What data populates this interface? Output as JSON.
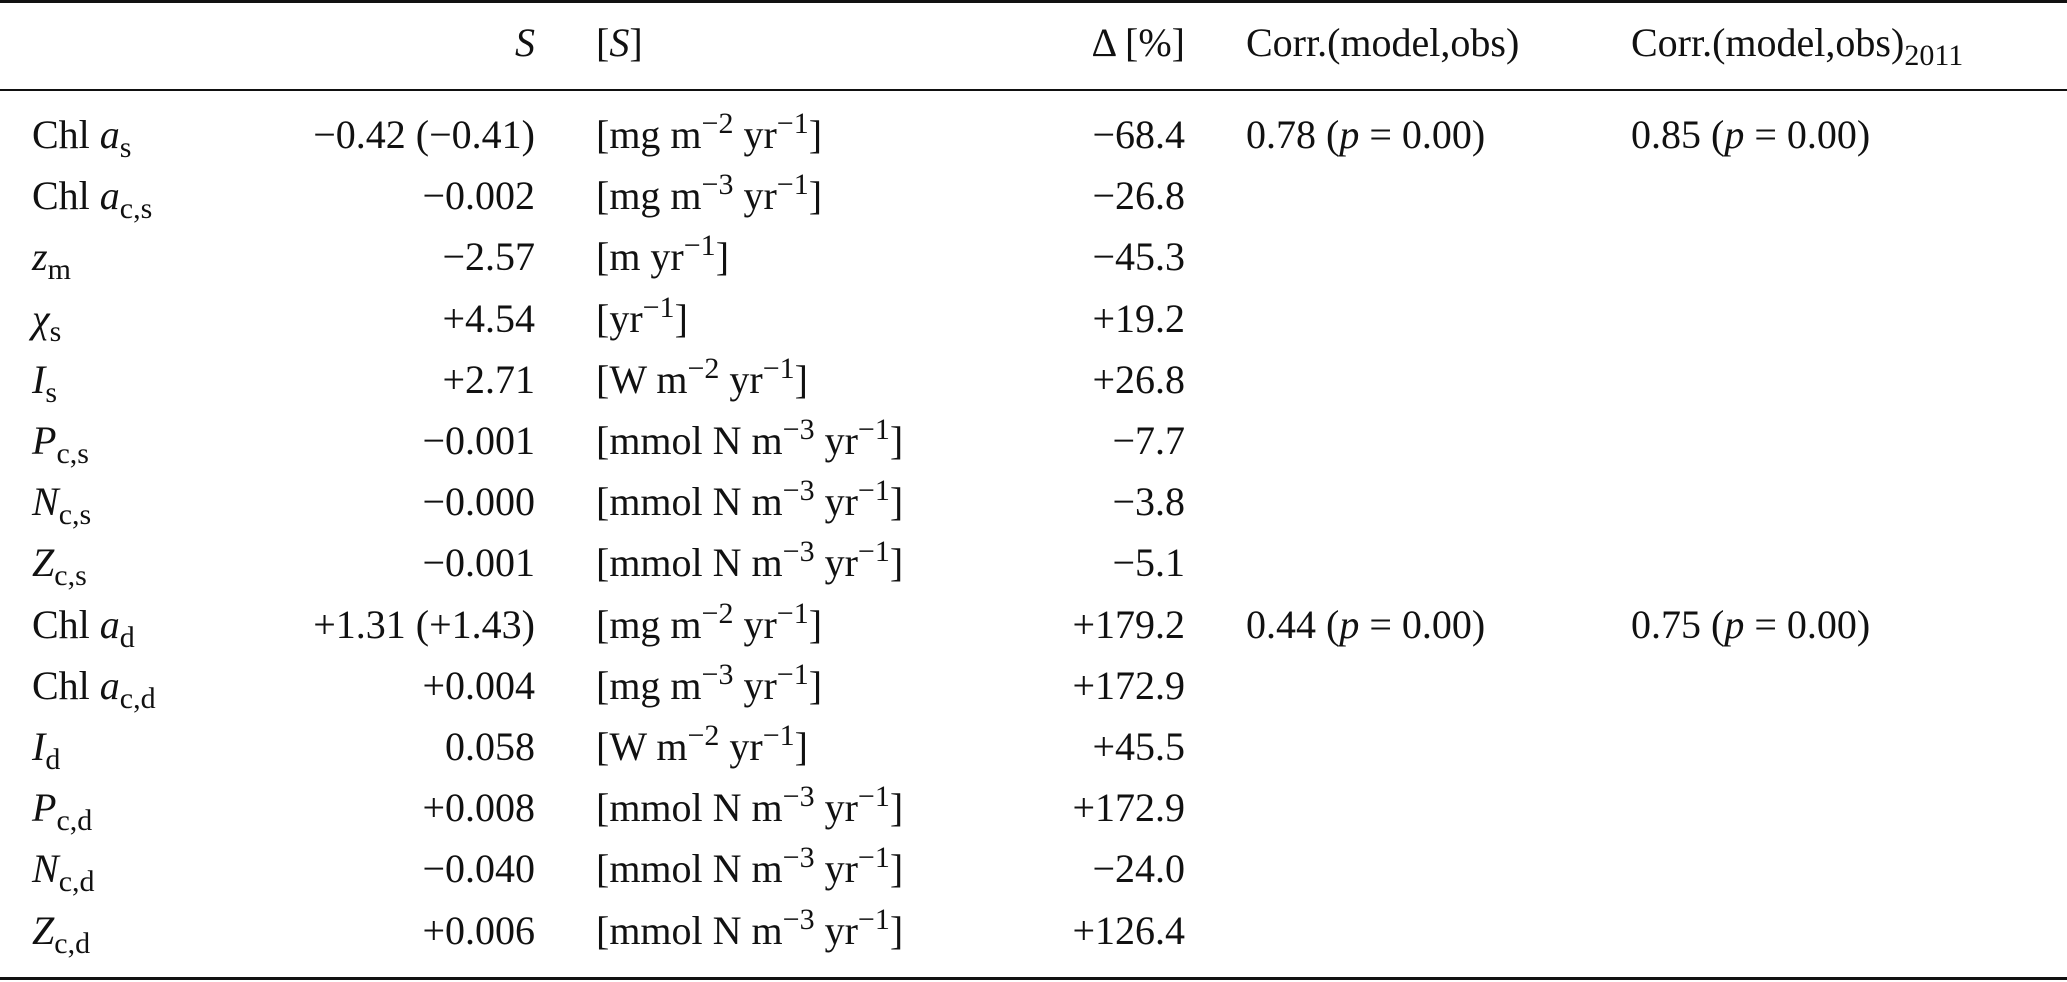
{
  "header": {
    "s": "S",
    "unit_open": "[",
    "unit_s": "S",
    "unit_close": "]",
    "delta": "Δ [%]",
    "corr": "Corr.(model,obs)",
    "corr2011_main": "Corr.(model,obs)",
    "corr2011_sub": "2011"
  },
  "rows": [
    {
      "name_pre": "Chl ",
      "name_main": "a",
      "name_sub": "s",
      "s": "−0.42 (−0.41)",
      "unit_a": "[mg m",
      "unit_a_sup": "−2",
      "unit_b": " yr",
      "unit_b_sup": "−1",
      "unit_end": "]",
      "delta": "−68.4",
      "corr_val": "0.78 (",
      "corr_p": "p",
      "corr_rest": " = 0.00)",
      "corr11_val": "0.85 (",
      "corr11_p": "p",
      "corr11_rest": " = 0.00)"
    },
    {
      "name_pre": "Chl ",
      "name_main": "a",
      "name_sub": "c,s",
      "s": "−0.002",
      "unit_a": "[mg m",
      "unit_a_sup": "−3",
      "unit_b": " yr",
      "unit_b_sup": "−1",
      "unit_end": "]",
      "delta": "−26.8"
    },
    {
      "name_pre": "",
      "name_main": "z",
      "name_sub": "m",
      "s": "−2.57",
      "unit_a": "[m yr",
      "unit_a_sup": "−1",
      "unit_b": "",
      "unit_b_sup": "",
      "unit_end": "]",
      "delta": "−45.3"
    },
    {
      "name_pre": "",
      "name_main": "χ",
      "name_sub": "s",
      "s": "+4.54",
      "unit_a": "[yr",
      "unit_a_sup": "−1",
      "unit_b": "",
      "unit_b_sup": "",
      "unit_end": "]",
      "delta": "+19.2"
    },
    {
      "name_pre": "",
      "name_main": "I",
      "name_sub": "s",
      "s": "+2.71",
      "unit_a": "[W m",
      "unit_a_sup": "−2",
      "unit_b": " yr",
      "unit_b_sup": "−1",
      "unit_end": "]",
      "delta": "+26.8"
    },
    {
      "name_pre": "",
      "name_main": "P",
      "name_sub": "c,s",
      "s": "−0.001",
      "unit_a": "[mmol N m",
      "unit_a_sup": "−3",
      "unit_b": " yr",
      "unit_b_sup": "−1",
      "unit_end": "]",
      "delta": "−7.7"
    },
    {
      "name_pre": "",
      "name_main": "N",
      "name_sub": "c,s",
      "s": "−0.000",
      "unit_a": "[mmol N m",
      "unit_a_sup": "−3",
      "unit_b": " yr",
      "unit_b_sup": "−1",
      "unit_end": "]",
      "delta": "−3.8"
    },
    {
      "name_pre": "",
      "name_main": "Z",
      "name_sub": "c,s",
      "s": "−0.001",
      "unit_a": "[mmol N m",
      "unit_a_sup": "−3",
      "unit_b": " yr",
      "unit_b_sup": "−1",
      "unit_end": "]",
      "delta": "−5.1"
    },
    {
      "name_pre": "Chl ",
      "name_main": "a",
      "name_sub": "d",
      "s": "+1.31 (+1.43)",
      "unit_a": "[mg m",
      "unit_a_sup": "−2",
      "unit_b": " yr",
      "unit_b_sup": "−1",
      "unit_end": "]",
      "delta": "+179.2",
      "corr_val": "0.44 (",
      "corr_p": "p",
      "corr_rest": " = 0.00)",
      "corr11_val": "0.75 (",
      "corr11_p": "p",
      "corr11_rest": " = 0.00)"
    },
    {
      "name_pre": "Chl ",
      "name_main": "a",
      "name_sub": "c,d",
      "s": "+0.004",
      "unit_a": "[mg m",
      "unit_a_sup": "−3",
      "unit_b": " yr",
      "unit_b_sup": "−1",
      "unit_end": "]",
      "delta": "+172.9"
    },
    {
      "name_pre": "",
      "name_main": "I",
      "name_sub": "d",
      "s": "0.058",
      "unit_a": "[W m",
      "unit_a_sup": "−2",
      "unit_b": " yr",
      "unit_b_sup": "−1",
      "unit_end": "]",
      "delta": "+45.5"
    },
    {
      "name_pre": "",
      "name_main": "P",
      "name_sub": "c,d",
      "s": "+0.008",
      "unit_a": "[mmol N m",
      "unit_a_sup": "−3",
      "unit_b": " yr",
      "unit_b_sup": "−1",
      "unit_end": "]",
      "delta": "+172.9"
    },
    {
      "name_pre": "",
      "name_main": "N",
      "name_sub": "c,d",
      "s": "−0.040",
      "unit_a": "[mmol N m",
      "unit_a_sup": "−3",
      "unit_b": " yr",
      "unit_b_sup": "−1",
      "unit_end": "]",
      "delta": "−24.0"
    },
    {
      "name_pre": "",
      "name_main": "Z",
      "name_sub": "c,d",
      "s": "+0.006",
      "unit_a": "[mmol N m",
      "unit_a_sup": "−3",
      "unit_b": " yr",
      "unit_b_sup": "−1",
      "unit_end": "]",
      "delta": "+126.4"
    }
  ]
}
